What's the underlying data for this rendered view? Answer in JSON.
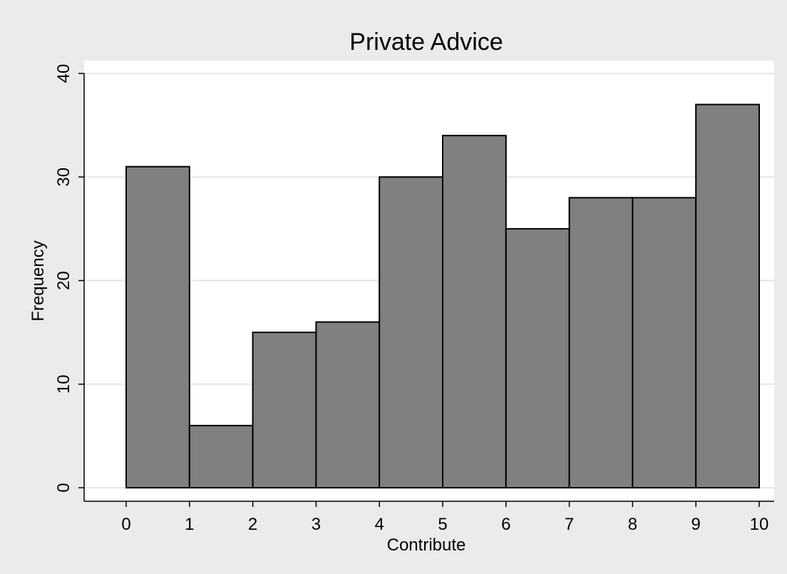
{
  "chart_data": {
    "type": "bar",
    "title": "Private Advice",
    "xlabel": "Contribute",
    "ylabel": "Frequency",
    "bin_edges": [
      0,
      1,
      2,
      3,
      4,
      5,
      6,
      7,
      8,
      9,
      10
    ],
    "values": [
      31,
      6,
      15,
      16,
      30,
      34,
      25,
      28,
      28,
      37
    ],
    "xlim": [
      0,
      10
    ],
    "ylim": [
      0,
      40
    ],
    "x_ticks": [
      "0",
      "1",
      "2",
      "3",
      "4",
      "5",
      "6",
      "7",
      "8",
      "9",
      "10"
    ],
    "y_ticks": [
      "0",
      "10",
      "20",
      "30",
      "40"
    ],
    "grid": true,
    "colors": {
      "bar_fill": "#808080",
      "bar_stroke": "#000000",
      "plot_bg": "#ffffff",
      "figure_bg": "#ebebeb",
      "grid": "#e6e6e6"
    }
  }
}
